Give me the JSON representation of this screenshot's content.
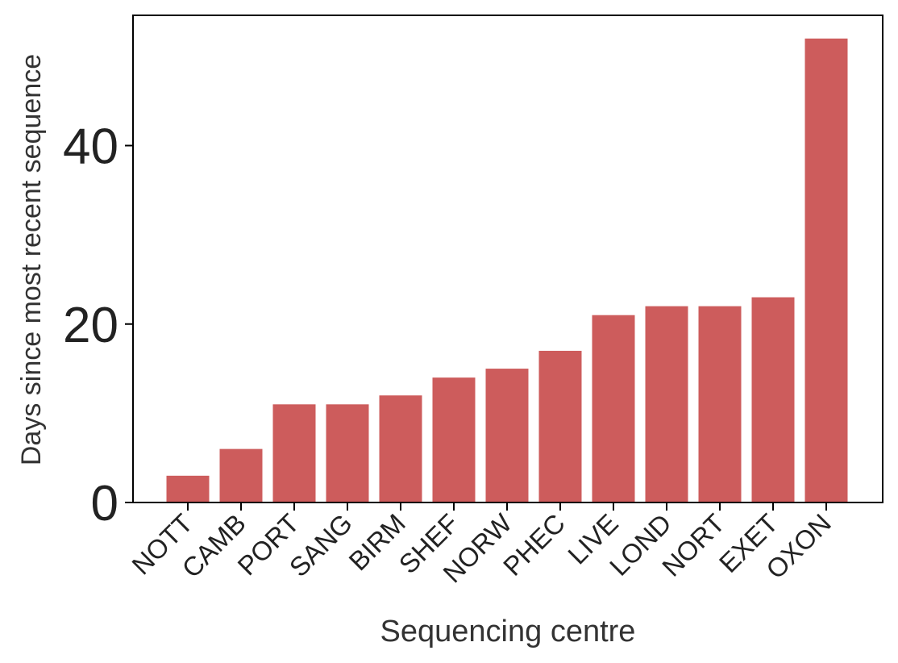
{
  "chart_data": {
    "type": "bar",
    "title": "",
    "xlabel": "Sequencing centre",
    "ylabel": "Days since most recent sequence",
    "categories": [
      "NOTT",
      "CAMB",
      "PORT",
      "SANG",
      "BIRM",
      "SHEF",
      "NORW",
      "PHEC",
      "LIVE",
      "LOND",
      "NORT",
      "EXET",
      "OXON"
    ],
    "values": [
      3,
      6,
      11,
      11,
      12,
      14,
      15,
      17,
      21,
      22,
      22,
      23,
      52
    ],
    "ylim": [
      0,
      54.6
    ],
    "yticks": [
      0,
      20,
      40
    ],
    "ytick_labels": [
      "0",
      "20",
      "40"
    ],
    "grid": false,
    "legend": "none",
    "bar_color": "#cd5c5c",
    "axis_color": "#000000"
  }
}
